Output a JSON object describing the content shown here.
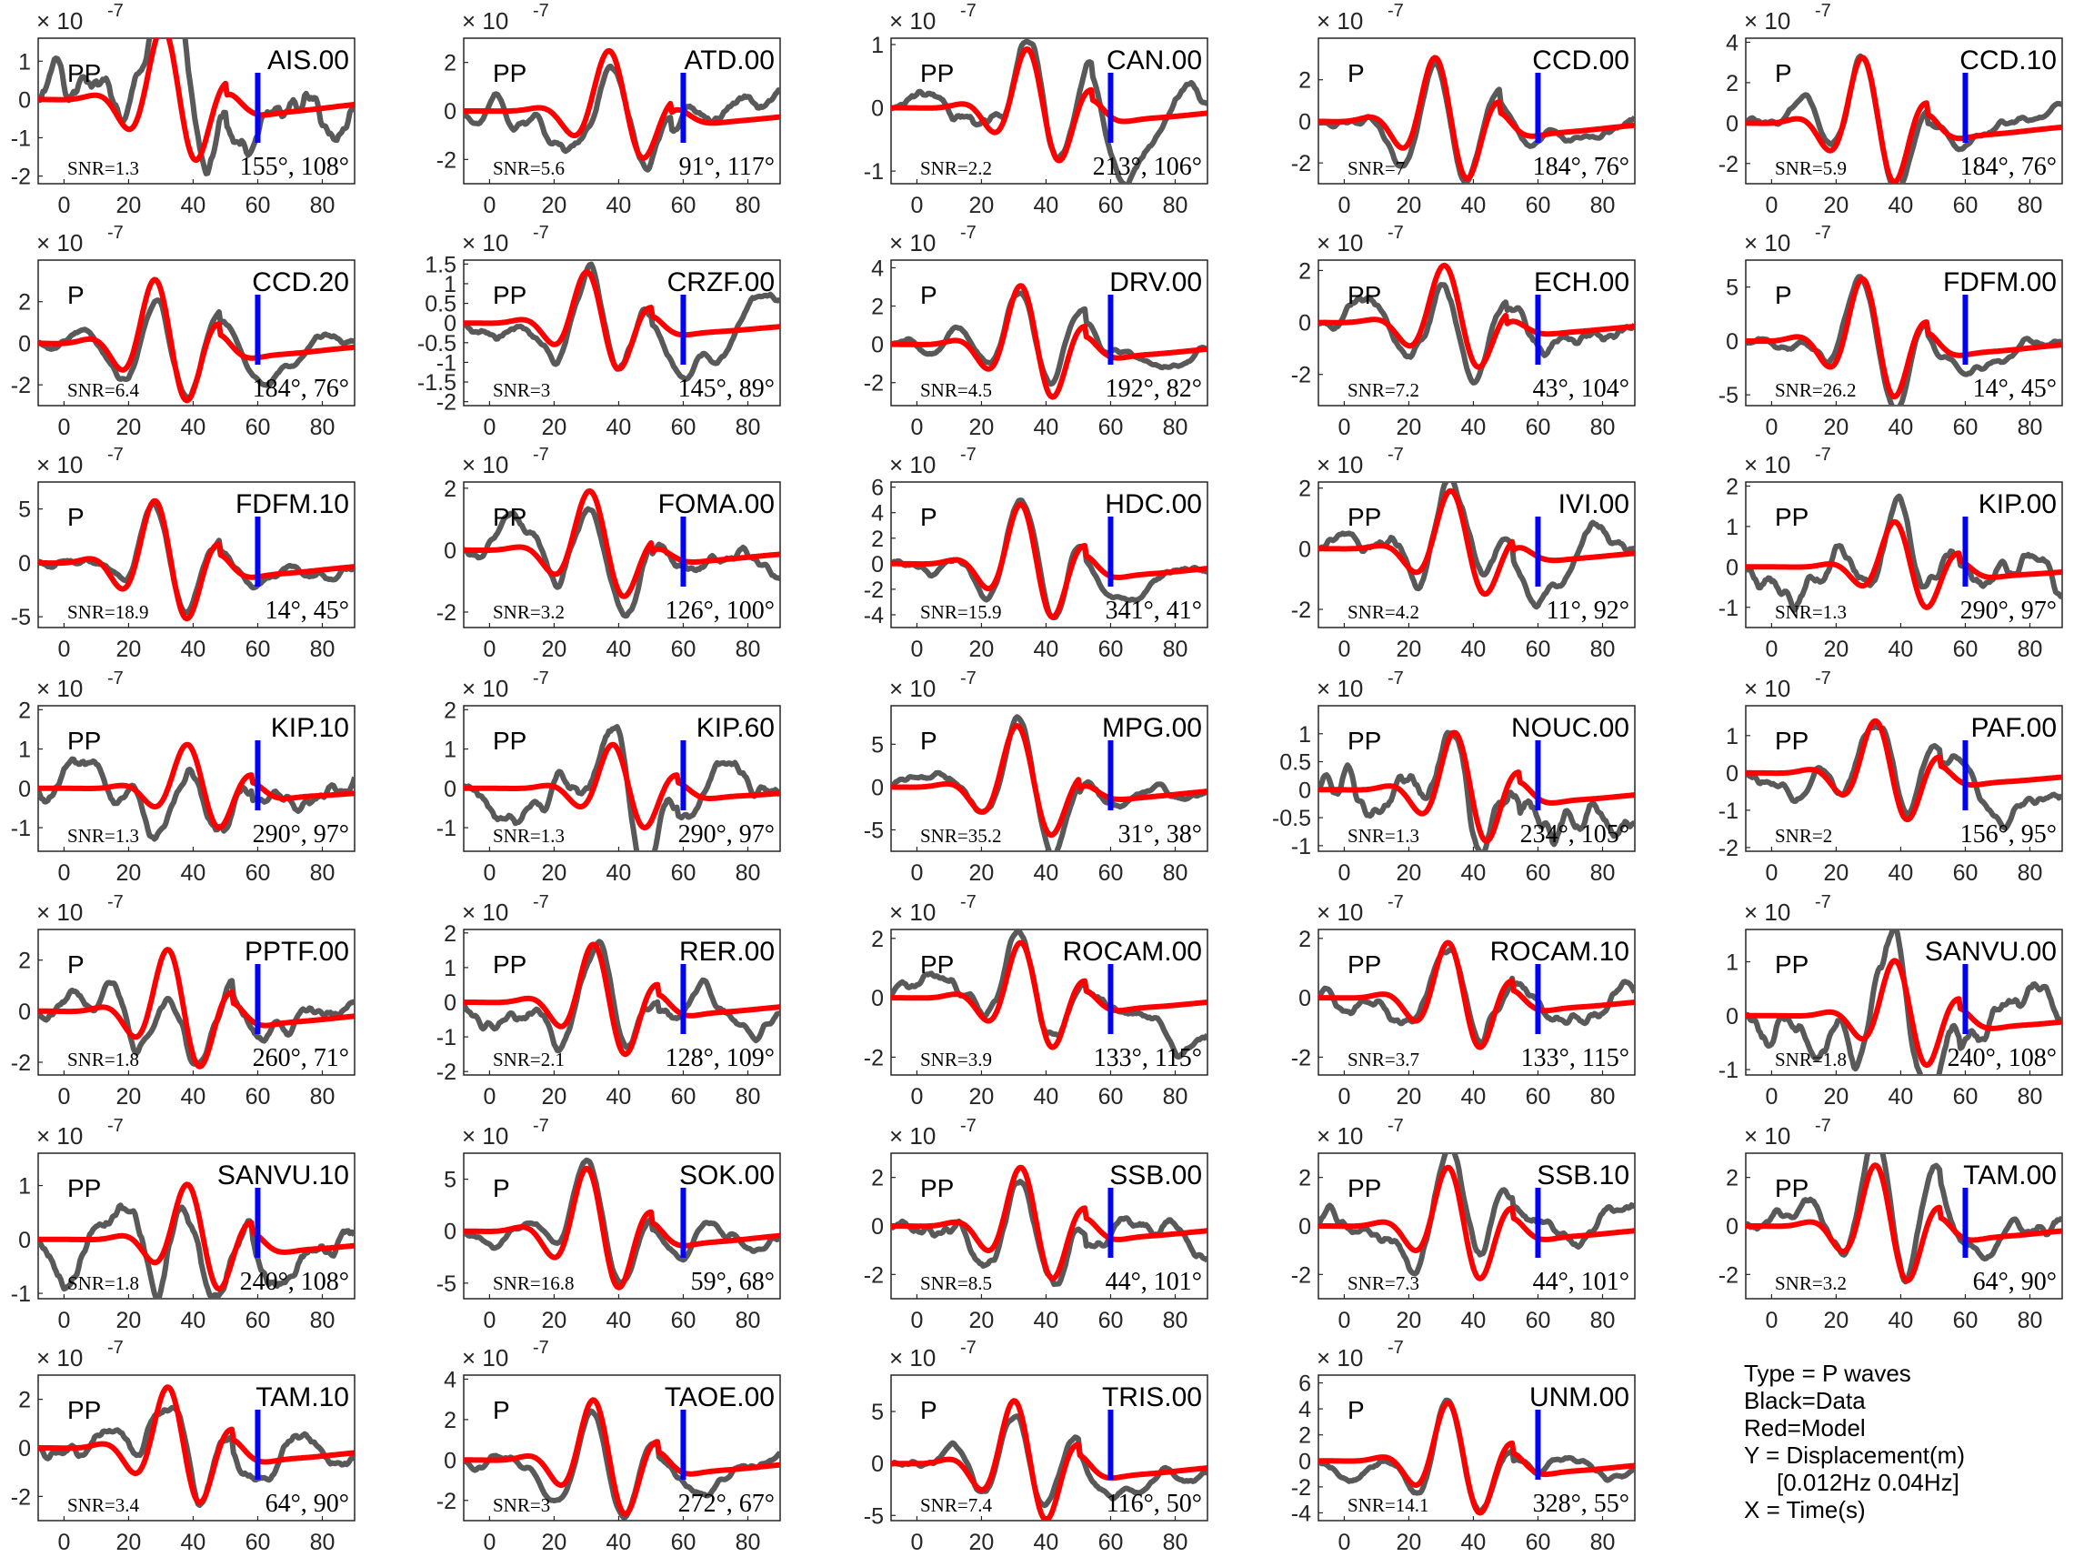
{
  "legend": {
    "type_line": "Type = P waves",
    "data_line": "Black=Data",
    "model_line": "Red=Model",
    "y_line": "Y = Displacement(m)",
    "band_line": "[0.012Hz 0.04Hz]",
    "x_line": "X = Time(s)"
  },
  "colors": {
    "data": "#595959",
    "model": "#ff0000",
    "marker": "#0000ff",
    "axes": "#262626"
  },
  "exponent_label": "× 10",
  "exponent_power": "-7",
  "chart_data": [
    {
      "type": "line",
      "station": "AIS.00",
      "phase": "PP",
      "snr": "SNR=1.3",
      "az_inc": "155°, 108°",
      "ylim": [
        -2.2,
        1.6
      ],
      "yticks": [
        1,
        0,
        -1,
        -2
      ],
      "xlim": [
        -8,
        90
      ],
      "xticks": [
        0,
        20,
        40,
        60,
        80
      ],
      "amp": 2.0,
      "t0": 20,
      "per": 23,
      "marker_t": 60,
      "seed": 1
    },
    {
      "type": "line",
      "station": "ATD.00",
      "phase": "PP",
      "snr": "SNR=5.6",
      "az_inc": "91°, 117°",
      "ylim": [
        -3,
        3
      ],
      "yticks": [
        2,
        0,
        -2
      ],
      "xlim": [
        -8,
        90
      ],
      "xticks": [
        0,
        20,
        40,
        60,
        80
      ],
      "amp": 2.6,
      "t0": 26,
      "per": 24,
      "marker_t": 60,
      "seed": 2
    },
    {
      "type": "line",
      "station": "CAN.00",
      "phase": "PP",
      "snr": "SNR=2.2",
      "az_inc": "213°, 106°",
      "ylim": [
        -1.2,
        1.1
      ],
      "yticks": [
        1,
        0,
        -1
      ],
      "xlim": [
        -8,
        90
      ],
      "xticks": [
        0,
        20,
        40,
        60,
        80
      ],
      "amp": 1.0,
      "t0": 24,
      "per": 22,
      "marker_t": 60,
      "seed": 3
    },
    {
      "type": "line",
      "station": "CCD.00",
      "phase": "P",
      "snr": "SNR=7",
      "az_inc": "184°, 76°",
      "ylim": [
        -3,
        4
      ],
      "yticks": [
        2,
        0,
        -2
      ],
      "xlim": [
        -8,
        90
      ],
      "xticks": [
        0,
        20,
        40,
        60,
        80
      ],
      "amp": 3.3,
      "t0": 18,
      "per": 22,
      "marker_t": 60,
      "seed": 4
    },
    {
      "type": "line",
      "station": "CCD.10",
      "phase": "P",
      "snr": "SNR=5.9",
      "az_inc": "184°, 76°",
      "ylim": [
        -3,
        4.2
      ],
      "yticks": [
        4,
        2,
        0,
        -2
      ],
      "xlim": [
        -8,
        90
      ],
      "xticks": [
        0,
        20,
        40,
        60,
        80
      ],
      "amp": 3.5,
      "t0": 18,
      "per": 22,
      "marker_t": 60,
      "seed": 5
    },
    {
      "type": "line",
      "station": "CCD.20",
      "phase": "P",
      "snr": "SNR=6.4",
      "az_inc": "184°, 76°",
      "ylim": [
        -3,
        4
      ],
      "yticks": [
        2,
        0,
        -2
      ],
      "xlim": [
        -8,
        90
      ],
      "xticks": [
        0,
        20,
        40,
        60,
        80
      ],
      "amp": 3.3,
      "t0": 18,
      "per": 22,
      "marker_t": 60,
      "seed": 6
    },
    {
      "type": "line",
      "station": "CRZF.00",
      "phase": "PP",
      "snr": "SNR=3",
      "az_inc": "145°, 89°",
      "ylim": [
        -2.1,
        1.6
      ],
      "yticks": [
        1.5,
        1,
        0.5,
        0,
        -0.5,
        -1,
        -1.5,
        -2
      ],
      "xlim": [
        -8,
        90
      ],
      "xticks": [
        0,
        20,
        40,
        60,
        80
      ],
      "amp": 1.4,
      "t0": 20,
      "per": 22,
      "marker_t": 60,
      "seed": 7
    },
    {
      "type": "line",
      "station": "DRV.00",
      "phase": "P",
      "snr": "SNR=4.5",
      "az_inc": "192°, 82°",
      "ylim": [
        -3.2,
        4.4
      ],
      "yticks": [
        4,
        2,
        0,
        -2
      ],
      "xlim": [
        -8,
        90
      ],
      "xticks": [
        0,
        20,
        40,
        60,
        80
      ],
      "amp": 3.3,
      "t0": 22,
      "per": 22,
      "marker_t": 60,
      "seed": 8
    },
    {
      "type": "line",
      "station": "ECH.00",
      "phase": "PP",
      "snr": "SNR=7.2",
      "az_inc": "43°, 104°",
      "ylim": [
        -3.2,
        2.4
      ],
      "yticks": [
        2,
        0,
        -2
      ],
      "xlim": [
        -8,
        90
      ],
      "xticks": [
        0,
        20,
        40,
        60,
        80
      ],
      "amp": 2.3,
      "t0": 20,
      "per": 24,
      "marker_t": 60,
      "seed": 9
    },
    {
      "type": "line",
      "station": "FDFM.00",
      "phase": "P",
      "snr": "SNR=26.2",
      "az_inc": "14°, 45°",
      "ylim": [
        -6,
        7.5
      ],
      "yticks": [
        5,
        0,
        -5
      ],
      "xlim": [
        -8,
        90
      ],
      "xticks": [
        0,
        20,
        40,
        60,
        80
      ],
      "amp": 6.2,
      "t0": 18,
      "per": 22,
      "marker_t": 60,
      "seed": 10
    },
    {
      "type": "line",
      "station": "FDFM.10",
      "phase": "P",
      "snr": "SNR=18.9",
      "az_inc": "14°, 45°",
      "ylim": [
        -6,
        7.5
      ],
      "yticks": [
        5,
        0,
        -5
      ],
      "xlim": [
        -8,
        90
      ],
      "xticks": [
        0,
        20,
        40,
        60,
        80
      ],
      "amp": 6.2,
      "t0": 18,
      "per": 22,
      "marker_t": 60,
      "seed": 11
    },
    {
      "type": "line",
      "station": "FOMA.00",
      "phase": "PP",
      "snr": "SNR=3.2",
      "az_inc": "126°, 100°",
      "ylim": [
        -2.5,
        2.2
      ],
      "yticks": [
        2,
        0,
        -2
      ],
      "xlim": [
        -8,
        90
      ],
      "xticks": [
        0,
        20,
        40,
        60,
        80
      ],
      "amp": 2.0,
      "t0": 20,
      "per": 24,
      "marker_t": 60,
      "seed": 12
    },
    {
      "type": "line",
      "station": "HDC.00",
      "phase": "P",
      "snr": "SNR=15.9",
      "az_inc": "341°, 41°",
      "ylim": [
        -5,
        6.4
      ],
      "yticks": [
        6,
        4,
        2,
        0,
        -2,
        -4
      ],
      "xlim": [
        -8,
        90
      ],
      "xticks": [
        0,
        20,
        40,
        60,
        80
      ],
      "amp": 5.0,
      "t0": 22,
      "per": 22,
      "marker_t": 60,
      "seed": 13
    },
    {
      "type": "line",
      "station": "IVI.00",
      "phase": "PP",
      "snr": "SNR=4.2",
      "az_inc": "11°, 92°",
      "ylim": [
        -2.6,
        2.2
      ],
      "yticks": [
        2,
        0,
        -2
      ],
      "xlim": [
        -8,
        90
      ],
      "xticks": [
        0,
        20,
        40,
        60,
        80
      ],
      "amp": 2.0,
      "t0": 22,
      "per": 24,
      "marker_t": 60,
      "seed": 14
    },
    {
      "type": "line",
      "station": "KIP.00",
      "phase": "PP",
      "snr": "SNR=1.3",
      "az_inc": "290°, 97°",
      "ylim": [
        -1.5,
        2.1
      ],
      "yticks": [
        2,
        1,
        0,
        -1
      ],
      "xlim": [
        -8,
        90
      ],
      "xticks": [
        0,
        20,
        40,
        60,
        80
      ],
      "amp": 1.2,
      "t0": 28,
      "per": 22,
      "marker_t": 60,
      "seed": 15
    },
    {
      "type": "line",
      "station": "KIP.10",
      "phase": "PP",
      "snr": "SNR=1.3",
      "az_inc": "290°, 97°",
      "ylim": [
        -1.6,
        2.1
      ],
      "yticks": [
        2,
        1,
        0,
        -1
      ],
      "xlim": [
        -8,
        90
      ],
      "xticks": [
        0,
        20,
        40,
        60,
        80
      ],
      "amp": 1.2,
      "t0": 28,
      "per": 22,
      "marker_t": 60,
      "seed": 16
    },
    {
      "type": "line",
      "station": "KIP.60",
      "phase": "PP",
      "snr": "SNR=1.3",
      "az_inc": "290°, 97°",
      "ylim": [
        -1.6,
        2.1
      ],
      "yticks": [
        2,
        1,
        0,
        -1
      ],
      "xlim": [
        -8,
        90
      ],
      "xticks": [
        0,
        20,
        40,
        60,
        80
      ],
      "amp": 1.2,
      "t0": 28,
      "per": 22,
      "marker_t": 60,
      "seed": 17
    },
    {
      "type": "line",
      "station": "MPG.00",
      "phase": "P",
      "snr": "SNR=35.2",
      "az_inc": "31°, 38°",
      "ylim": [
        -7.5,
        9.5
      ],
      "yticks": [
        5,
        0,
        -5
      ],
      "xlim": [
        -8,
        90
      ],
      "xticks": [
        0,
        20,
        40,
        60,
        80
      ],
      "amp": 7.5,
      "t0": 20,
      "per": 24,
      "marker_t": 60,
      "seed": 18
    },
    {
      "type": "line",
      "station": "NOUC.00",
      "phase": "PP",
      "snr": "SNR=1.3",
      "az_inc": "234°, 105°",
      "ylim": [
        -1.1,
        1.5
      ],
      "yticks": [
        1,
        0.5,
        0,
        -0.5,
        -1
      ],
      "xlim": [
        -8,
        90
      ],
      "xticks": [
        0,
        20,
        40,
        60,
        80
      ],
      "amp": 1.1,
      "t0": 24,
      "per": 22,
      "marker_t": 60,
      "seed": 19
    },
    {
      "type": "line",
      "station": "PAF.00",
      "phase": "PP",
      "snr": "SNR=2",
      "az_inc": "156°, 95°",
      "ylim": [
        -2.1,
        1.8
      ],
      "yticks": [
        1,
        0,
        -1,
        -2
      ],
      "xlim": [
        -8,
        90
      ],
      "xticks": [
        0,
        20,
        40,
        60,
        80
      ],
      "amp": 1.5,
      "t0": 22,
      "per": 22,
      "marker_t": 60,
      "seed": 20
    },
    {
      "type": "line",
      "station": "PPTF.00",
      "phase": "P",
      "snr": "SNR=1.8",
      "az_inc": "260°, 71°",
      "ylim": [
        -2.5,
        3.2
      ],
      "yticks": [
        2,
        0,
        -2
      ],
      "xlim": [
        -8,
        90
      ],
      "xticks": [
        0,
        20,
        40,
        60,
        80
      ],
      "amp": 2.6,
      "t0": 22,
      "per": 22,
      "marker_t": 60,
      "seed": 21
    },
    {
      "type": "line",
      "station": "RER.00",
      "phase": "PP",
      "snr": "SNR=2.1",
      "az_inc": "128°, 109°",
      "ylim": [
        -2.1,
        2.1
      ],
      "yticks": [
        2,
        1,
        0,
        -1,
        -2
      ],
      "xlim": [
        -8,
        90
      ],
      "xticks": [
        0,
        20,
        40,
        60,
        80
      ],
      "amp": 1.8,
      "t0": 22,
      "per": 22,
      "marker_t": 60,
      "seed": 22
    },
    {
      "type": "line",
      "station": "ROCAM.00",
      "phase": "PP",
      "snr": "SNR=3.9",
      "az_inc": "133°, 115°",
      "ylim": [
        -2.6,
        2.3
      ],
      "yticks": [
        2,
        0,
        -2
      ],
      "xlim": [
        -8,
        90
      ],
      "xticks": [
        0,
        20,
        40,
        60,
        80
      ],
      "amp": 2.0,
      "t0": 22,
      "per": 22,
      "marker_t": 60,
      "seed": 23
    },
    {
      "type": "line",
      "station": "ROCAM.10",
      "phase": "PP",
      "snr": "SNR=3.7",
      "az_inc": "133°, 115°",
      "ylim": [
        -2.6,
        2.3
      ],
      "yticks": [
        2,
        0,
        -2
      ],
      "xlim": [
        -8,
        90
      ],
      "xticks": [
        0,
        20,
        40,
        60,
        80
      ],
      "amp": 2.0,
      "t0": 22,
      "per": 22,
      "marker_t": 60,
      "seed": 24
    },
    {
      "type": "line",
      "station": "SANVU.00",
      "phase": "PP",
      "snr": "SNR=1.8",
      "az_inc": "240°, 108°",
      "ylim": [
        -1.1,
        1.6
      ],
      "yticks": [
        1,
        0,
        -1
      ],
      "xlim": [
        -8,
        90
      ],
      "xticks": [
        0,
        20,
        40,
        60,
        80
      ],
      "amp": 1.1,
      "t0": 28,
      "per": 22,
      "marker_t": 60,
      "seed": 25
    },
    {
      "type": "line",
      "station": "SANVU.10",
      "phase": "PP",
      "snr": "SNR=1.8",
      "az_inc": "240°, 108°",
      "ylim": [
        -1.1,
        1.6
      ],
      "yticks": [
        1,
        0,
        -1
      ],
      "xlim": [
        -8,
        90
      ],
      "xticks": [
        0,
        20,
        40,
        60,
        80
      ],
      "amp": 1.1,
      "t0": 28,
      "per": 22,
      "marker_t": 60,
      "seed": 26
    },
    {
      "type": "line",
      "station": "SOK.00",
      "phase": "P",
      "snr": "SNR=16.8",
      "az_inc": "59°, 68°",
      "ylim": [
        -6.5,
        7.5
      ],
      "yticks": [
        5,
        0,
        -5
      ],
      "xlim": [
        -8,
        90
      ],
      "xticks": [
        0,
        20,
        40,
        60,
        80
      ],
      "amp": 6.5,
      "t0": 20,
      "per": 22,
      "marker_t": 60,
      "seed": 27
    },
    {
      "type": "line",
      "station": "SSB.00",
      "phase": "PP",
      "snr": "SNR=8.5",
      "az_inc": "44°, 101°",
      "ylim": [
        -3,
        3
      ],
      "yticks": [
        2,
        0,
        -2
      ],
      "xlim": [
        -8,
        90
      ],
      "xticks": [
        0,
        20,
        40,
        60,
        80
      ],
      "amp": 2.6,
      "t0": 22,
      "per": 22,
      "marker_t": 60,
      "seed": 28
    },
    {
      "type": "line",
      "station": "SSB.10",
      "phase": "PP",
      "snr": "SNR=7.3",
      "az_inc": "44°, 101°",
      "ylim": [
        -3,
        3
      ],
      "yticks": [
        2,
        0,
        -2
      ],
      "xlim": [
        -8,
        90
      ],
      "xticks": [
        0,
        20,
        40,
        60,
        80
      ],
      "amp": 2.6,
      "t0": 22,
      "per": 22,
      "marker_t": 60,
      "seed": 29
    },
    {
      "type": "line",
      "station": "TAM.00",
      "phase": "PP",
      "snr": "SNR=3.2",
      "az_inc": "64°, 90°",
      "ylim": [
        -3,
        3
      ],
      "yticks": [
        2,
        0,
        -2
      ],
      "xlim": [
        -8,
        90
      ],
      "xticks": [
        0,
        20,
        40,
        60,
        80
      ],
      "amp": 2.7,
      "t0": 22,
      "per": 22,
      "marker_t": 60,
      "seed": 30
    },
    {
      "type": "line",
      "station": "TAM.10",
      "phase": "PP",
      "snr": "SNR=3.4",
      "az_inc": "64°, 90°",
      "ylim": [
        -3,
        3
      ],
      "yticks": [
        2,
        0,
        -2
      ],
      "xlim": [
        -8,
        90
      ],
      "xticks": [
        0,
        20,
        40,
        60,
        80
      ],
      "amp": 2.7,
      "t0": 22,
      "per": 22,
      "marker_t": 60,
      "seed": 31
    },
    {
      "type": "line",
      "station": "TAOE.00",
      "phase": "P",
      "snr": "SNR=3",
      "az_inc": "272°, 67°",
      "ylim": [
        -3,
        4.2
      ],
      "yticks": [
        4,
        2,
        0,
        -2
      ],
      "xlim": [
        -8,
        90
      ],
      "xticks": [
        0,
        20,
        40,
        60,
        80
      ],
      "amp": 3.2,
      "t0": 22,
      "per": 22,
      "marker_t": 60,
      "seed": 32
    },
    {
      "type": "line",
      "station": "TRIS.00",
      "phase": "P",
      "snr": "SNR=7.4",
      "az_inc": "116°, 50°",
      "ylim": [
        -5.5,
        8.5
      ],
      "yticks": [
        5,
        0,
        -5
      ],
      "xlim": [
        -8,
        90
      ],
      "xticks": [
        0,
        20,
        40,
        60,
        80
      ],
      "amp": 6.5,
      "t0": 20,
      "per": 22,
      "marker_t": 60,
      "seed": 33
    },
    {
      "type": "line",
      "station": "UNM.00",
      "phase": "P",
      "snr": "SNR=14.1",
      "az_inc": "328°, 55°",
      "ylim": [
        -4.6,
        6.6
      ],
      "yticks": [
        6,
        4,
        2,
        0,
        -2,
        -4
      ],
      "xlim": [
        -8,
        90
      ],
      "xticks": [
        0,
        20,
        40,
        60,
        80
      ],
      "amp": 4.8,
      "t0": 22,
      "per": 22,
      "marker_t": 60,
      "seed": 34
    }
  ]
}
